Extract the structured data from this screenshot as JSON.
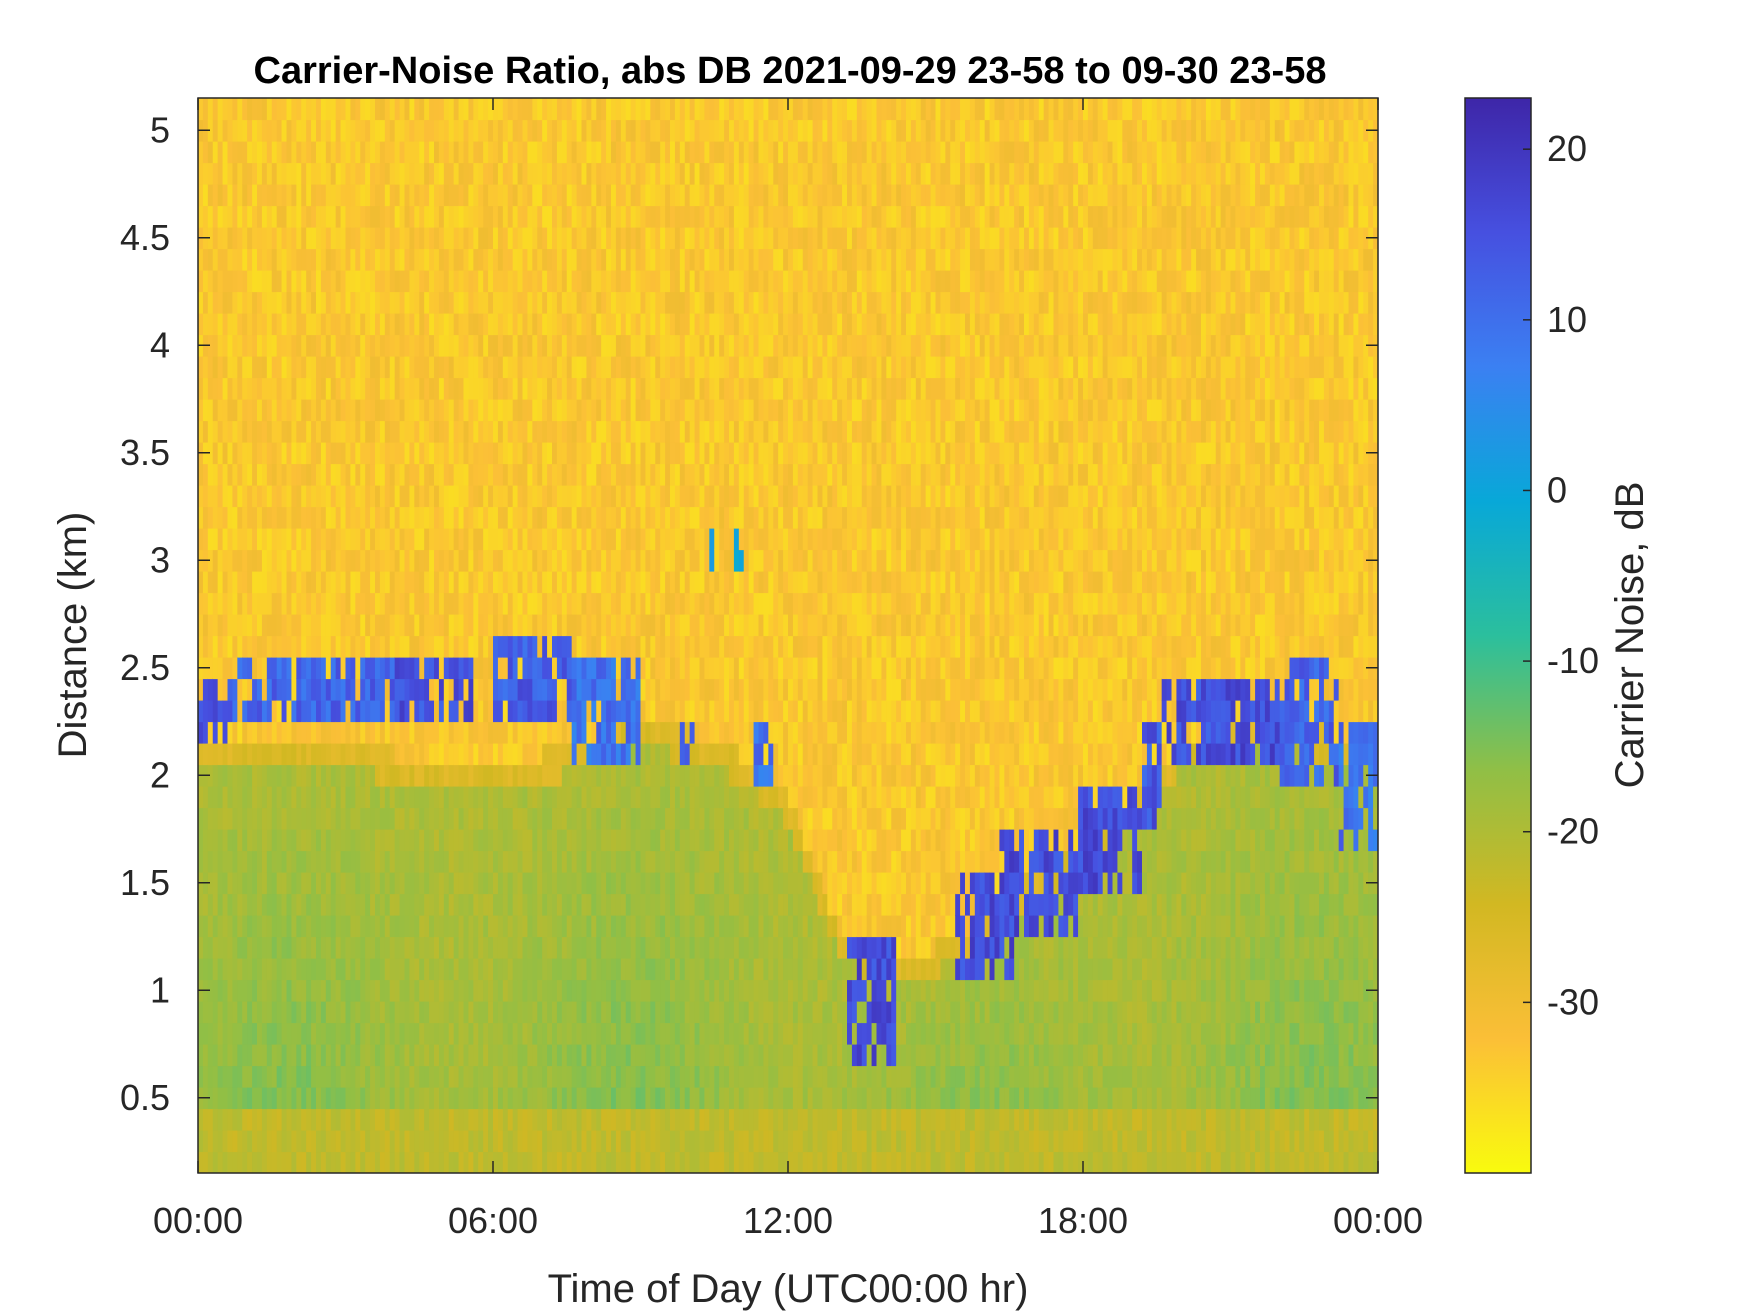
{
  "chart_data": {
    "type": "heatmap",
    "title": "Carrier-Noise Ratio, abs DB 2021-09-29 23-58 to 09-30 23-58",
    "xlabel": "Time of Day (UTC00:00 hr)",
    "ylabel": "Distance (km)",
    "x_unit": "hours",
    "xlim": [
      0,
      24
    ],
    "x_ticks": [
      0,
      6,
      12,
      18,
      24
    ],
    "x_tick_labels": [
      "00:00",
      "06:00",
      "12:00",
      "18:00",
      "00:00"
    ],
    "ylim": [
      0.15,
      5.15
    ],
    "y_ticks": [
      0.5,
      1,
      1.5,
      2,
      2.5,
      3,
      3.5,
      4,
      4.5,
      5
    ],
    "y_tick_labels": [
      "0.5",
      "1",
      "1.5",
      "2",
      "2.5",
      "3",
      "3.5",
      "4",
      "4.5",
      "5"
    ],
    "colorbar": {
      "label": "Carrier Noise, dB",
      "range": [
        -40,
        23
      ],
      "ticks": [
        -30,
        -20,
        -10,
        0,
        10,
        20
      ],
      "tick_labels": [
        "-30",
        "-20",
        "-10",
        "0",
        "10",
        "20"
      ],
      "colormap": "parula-reversed",
      "colors_low_to_high": [
        "#f9fb0e",
        "#fbbf37",
        "#d2b822",
        "#90bf46",
        "#2bbf9d",
        "#08a8d8",
        "#3b80f2",
        "#4650e0",
        "#3e26a8"
      ]
    },
    "layers": {
      "background_noise_dB": -33,
      "boundary_layer_top_km": [
        [
          0,
          2.15
        ],
        [
          1,
          2.15
        ],
        [
          2,
          2.15
        ],
        [
          3,
          2.15
        ],
        [
          4,
          2.1
        ],
        [
          5,
          2.05
        ],
        [
          6,
          2.1
        ],
        [
          7,
          2.1
        ],
        [
          8,
          2.15
        ],
        [
          9,
          2.25
        ],
        [
          10,
          2.2
        ],
        [
          11,
          2.1
        ],
        [
          12,
          1.9
        ],
        [
          13,
          1.3
        ],
        [
          14,
          1.15
        ],
        [
          15,
          1.2
        ],
        [
          16,
          1.35
        ],
        [
          17,
          1.55
        ],
        [
          18,
          1.7
        ],
        [
          19,
          1.9
        ],
        [
          20,
          2.15
        ],
        [
          21,
          2.25
        ],
        [
          22,
          2.25
        ],
        [
          23,
          2.2
        ],
        [
          24,
          2.1
        ]
      ],
      "boundary_layer_dB": -18,
      "cloud_base_returns_km": [
        {
          "t_start": 0.0,
          "t_end": 0.7,
          "z_bottom": 2.15,
          "z_top": 2.45,
          "dB": 14
        },
        {
          "t_start": 0.7,
          "t_end": 4.0,
          "z_bottom": 2.25,
          "z_top": 2.55,
          "dB": 12
        },
        {
          "t_start": 4.0,
          "t_end": 5.6,
          "z_bottom": 2.25,
          "z_top": 2.55,
          "dB": 15
        },
        {
          "t_start": 6.0,
          "t_end": 7.6,
          "z_bottom": 2.25,
          "z_top": 2.65,
          "dB": 13
        },
        {
          "t_start": 7.6,
          "t_end": 9.0,
          "z_bottom": 2.05,
          "z_top": 2.55,
          "dB": 10
        },
        {
          "t_start": 9.8,
          "t_end": 10.1,
          "z_bottom": 2.05,
          "z_top": 2.25,
          "dB": 15
        },
        {
          "t_start": 10.4,
          "t_end": 10.5,
          "z_bottom": 2.95,
          "z_top": 3.15,
          "dB": 2
        },
        {
          "t_start": 10.9,
          "t_end": 11.1,
          "z_bottom": 2.95,
          "z_top": 3.15,
          "dB": 2
        },
        {
          "t_start": 11.3,
          "t_end": 11.7,
          "z_bottom": 1.95,
          "z_top": 2.25,
          "dB": 10
        },
        {
          "t_start": 13.2,
          "t_end": 14.2,
          "z_bottom": 0.65,
          "z_top": 1.25,
          "dB": 16
        },
        {
          "t_start": 15.4,
          "t_end": 16.6,
          "z_bottom": 1.05,
          "z_top": 1.55,
          "dB": 16
        },
        {
          "t_start": 16.3,
          "t_end": 17.9,
          "z_bottom": 1.25,
          "z_top": 1.75,
          "dB": 16
        },
        {
          "t_start": 17.9,
          "t_end": 19.2,
          "z_bottom": 1.45,
          "z_top": 1.95,
          "dB": 16
        },
        {
          "t_start": 19.2,
          "t_end": 19.6,
          "z_bottom": 1.75,
          "z_top": 2.25,
          "dB": 14
        },
        {
          "t_start": 19.6,
          "t_end": 20.8,
          "z_bottom": 2.05,
          "z_top": 2.45,
          "dB": 15
        },
        {
          "t_start": 20.8,
          "t_end": 22.0,
          "z_bottom": 2.05,
          "z_top": 2.45,
          "dB": 16
        },
        {
          "t_start": 22.0,
          "t_end": 23.2,
          "z_bottom": 2.0,
          "z_top": 2.55,
          "dB": 12
        },
        {
          "t_start": 23.2,
          "t_end": 24.0,
          "z_bottom": 1.65,
          "z_top": 2.25,
          "dB": 10
        }
      ]
    }
  }
}
